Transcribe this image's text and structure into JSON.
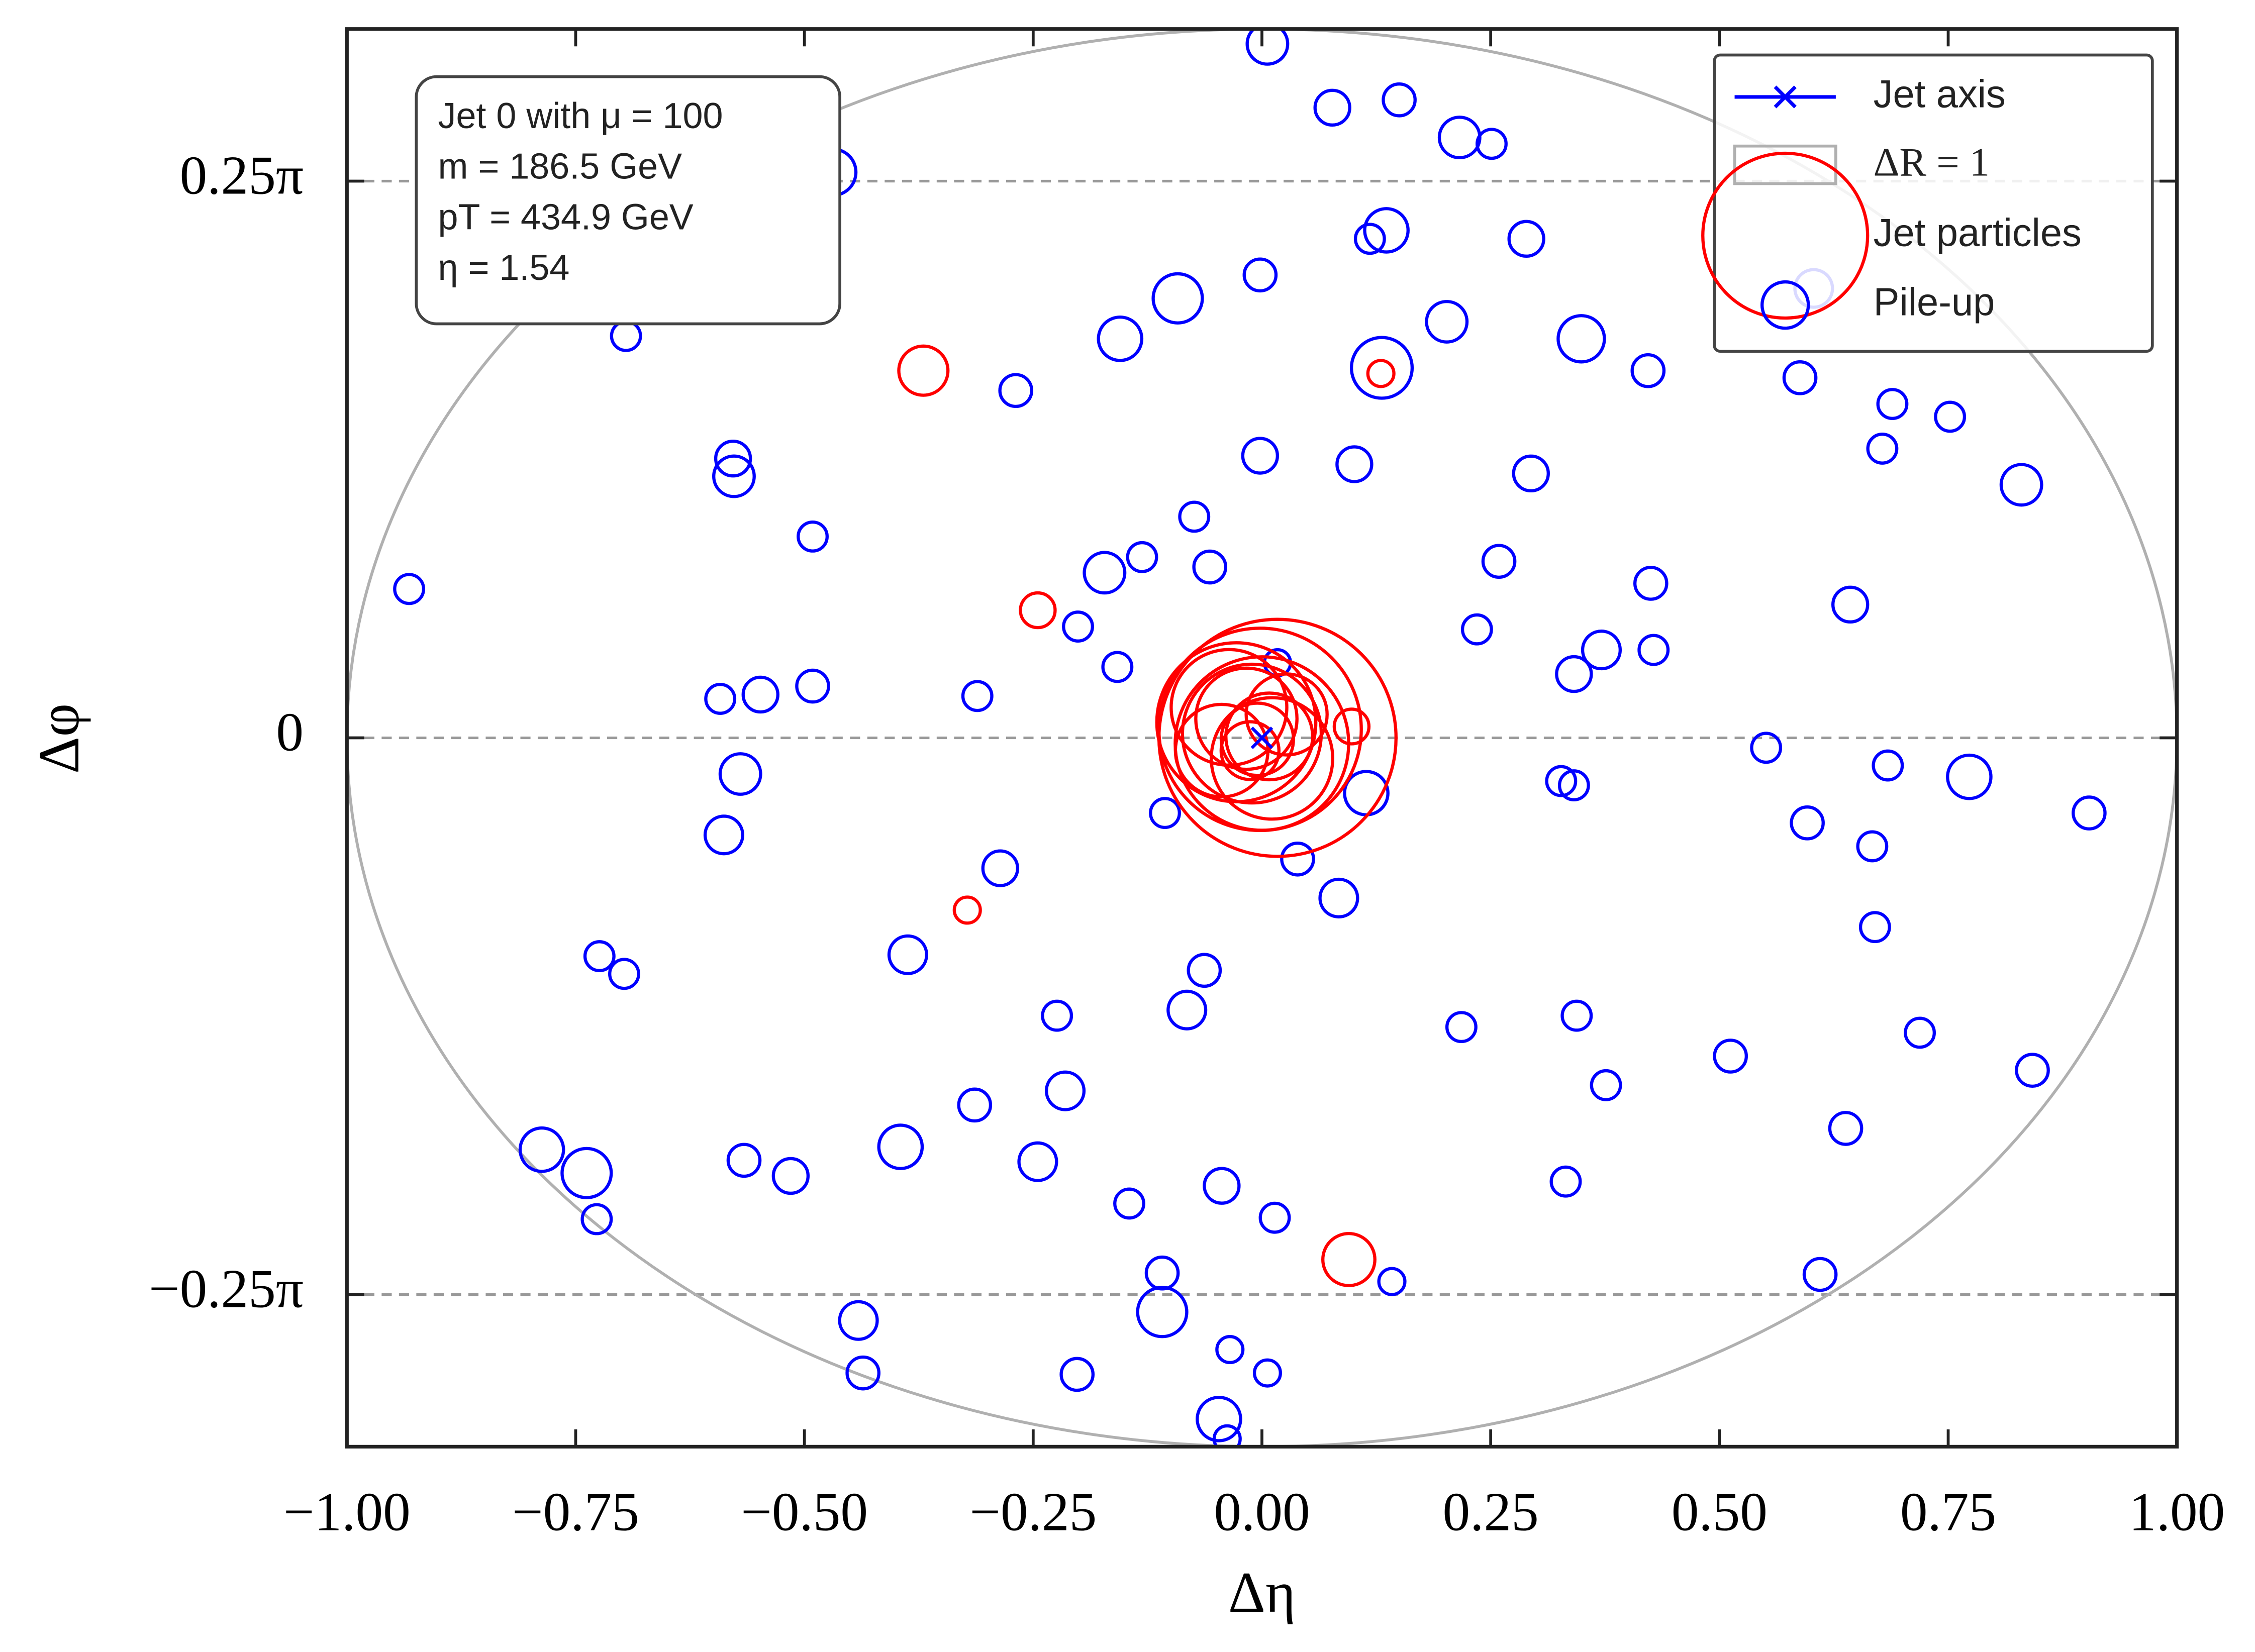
{
  "chart_data": {
    "type": "scatter",
    "xlabel": "Δη",
    "ylabel": "Δφ",
    "xlim": [
      -1,
      1
    ],
    "ylim": [
      -1,
      1
    ],
    "xticks": [
      {
        "value": -1,
        "label": "−1.00"
      },
      {
        "value": -0.75,
        "label": "−0.75"
      },
      {
        "value": -0.5,
        "label": "−0.50"
      },
      {
        "value": -0.25,
        "label": "−0.25"
      },
      {
        "value": 0,
        "label": "0.00"
      },
      {
        "value": 0.25,
        "label": "0.25"
      },
      {
        "value": 0.5,
        "label": "0.50"
      },
      {
        "value": 0.75,
        "label": "0.75"
      },
      {
        "value": 1,
        "label": "1.00"
      }
    ],
    "yticks": [
      {
        "value": -0.7854,
        "label": "−0.25π"
      },
      0,
      {
        "value": 0.7854,
        "label": "0.25π"
      }
    ],
    "grid": true,
    "legend": "upper right",
    "annotation": [
      "Jet 0 with μ = 100",
      "m = 186.5 GeV",
      "pT = 434.9 GeV",
      "η = 1.54"
    ],
    "jet_axis": {
      "name": "Jet axis",
      "x": 0,
      "y": 0,
      "color": "#0000ff"
    },
    "delta_r": {
      "name": "ΔR = 1",
      "radius": 1,
      "color": "#b0b0b0"
    },
    "series": [
      {
        "name": "Jet particles",
        "color": "#ff0000",
        "x": [
          -0.37,
          0.13,
          -0.245,
          -0.322,
          0.095,
          0.017,
          -0.002,
          -0.028,
          0,
          -0.011,
          -0.036,
          0.011,
          -0.017,
          0.008,
          -0.005,
          0.027,
          -0.044,
          0.098,
          -0.013
        ],
        "values": [
          0.518,
          0.514,
          0.18,
          -0.243,
          -0.736,
          0,
          0.012,
          0.022,
          -0.008,
          0.006,
          0.043,
          -0.029,
          0.027,
          0.002,
          -0.002,
          0.033,
          -0.018,
          0.016,
          -0.018
        ],
        "sizes": [
          17,
          9,
          12,
          9,
          18,
          82,
          70,
          55,
          60,
          48,
          40,
          42,
          35,
          30,
          25,
          28,
          32,
          12,
          20
        ]
      },
      {
        "name": "Pile-up",
        "color": "#0000ff",
        "x": [
          0.006,
          0.077,
          0.15,
          0.216,
          0.251,
          -0.469,
          -0.566,
          -0.501,
          0.136,
          0.118,
          -0.002,
          0.289,
          -0.092,
          0.202,
          -0.155,
          0.349,
          -0.695,
          0.131,
          0.422,
          -0.269,
          0.588,
          0.689,
          0.752,
          -0.578,
          -0.577,
          -0.002,
          0.101,
          0.294,
          0.678,
          0.83,
          -0.074,
          -0.491,
          -0.131,
          -0.172,
          -0.057,
          0.259,
          -0.932,
          0.425,
          -0.201,
          0.235,
          0.643,
          0.371,
          0.428,
          -0.158,
          0.341,
          -0.592,
          -0.548,
          -0.491,
          -0.311,
          0.017,
          0.551,
          0.684,
          0.773,
          -0.57,
          0.327,
          0.341,
          0.114,
          -0.106,
          0.596,
          0.904,
          -0.588,
          0.667,
          -0.286,
          0.039,
          0.084,
          0.67,
          -0.387,
          -0.063,
          -0.724,
          -0.697,
          -0.082,
          -0.224,
          0.218,
          0.344,
          0.719,
          0.512,
          0.842,
          -0.215,
          -0.314,
          0.376,
          0.638,
          -0.787,
          -0.738,
          -0.566,
          -0.515,
          -0.395,
          -0.245,
          -0.145,
          -0.044,
          0.332,
          -0.727,
          0.014,
          -0.109,
          0.61,
          0.142,
          -0.441,
          -0.109,
          -0.035,
          -0.436,
          -0.202,
          0.006,
          -0.047,
          -0.038,
          0.603
        ],
        "values": [
          0.979,
          0.889,
          0.9,
          0.847,
          0.838,
          0.798,
          0.753,
          0.743,
          0.716,
          0.704,
          0.653,
          0.704,
          0.62,
          0.587,
          0.563,
          0.563,
          0.567,
          0.522,
          0.518,
          0.49,
          0.508,
          0.471,
          0.453,
          0.394,
          0.369,
          0.398,
          0.386,
          0.373,
          0.408,
          0.357,
          0.312,
          0.284,
          0.255,
          0.233,
          0.241,
          0.249,
          0.21,
          0.218,
          0.157,
          0.153,
          0.188,
          0.124,
          0.124,
          0.1,
          0.09,
          0.055,
          0.061,
          0.073,
          0.059,
          0.106,
          -0.014,
          -0.039,
          -0.055,
          -0.051,
          -0.061,
          -0.067,
          -0.078,
          -0.106,
          -0.12,
          -0.106,
          -0.137,
          -0.153,
          -0.184,
          -0.171,
          -0.226,
          -0.267,
          -0.306,
          -0.328,
          -0.308,
          -0.333,
          -0.384,
          -0.392,
          -0.408,
          -0.392,
          -0.416,
          -0.449,
          -0.469,
          -0.498,
          -0.518,
          -0.49,
          -0.551,
          -0.581,
          -0.614,
          -0.596,
          -0.618,
          -0.577,
          -0.598,
          -0.657,
          -0.632,
          -0.626,
          -0.679,
          -0.677,
          -0.755,
          -0.757,
          -0.767,
          -0.822,
          -0.81,
          -0.863,
          -0.896,
          -0.898,
          -0.896,
          -0.961,
          -0.989,
          0.634
        ],
        "sizes": [
          14,
          12,
          11,
          14,
          10,
          16,
          13,
          11,
          15,
          10,
          11,
          12,
          17,
          14,
          15,
          16,
          10,
          21,
          11,
          11,
          11,
          10,
          10,
          12,
          14,
          12,
          12,
          12,
          10,
          14,
          10,
          10,
          10,
          14,
          11,
          11,
          10,
          11,
          10,
          10,
          12,
          13,
          10,
          10,
          12,
          10,
          12,
          11,
          10,
          9,
          10,
          10,
          15,
          14,
          10,
          10,
          15,
          10,
          11,
          11,
          13,
          10,
          12,
          11,
          13,
          10,
          13,
          11,
          10,
          10,
          13,
          10,
          10,
          10,
          10,
          11,
          11,
          13,
          11,
          10,
          11,
          15,
          17,
          11,
          12,
          15,
          13,
          10,
          12,
          10,
          10,
          10,
          11,
          11,
          9,
          13,
          17,
          9,
          11,
          11,
          9,
          15,
          9,
          13
        ]
      }
    ]
  }
}
